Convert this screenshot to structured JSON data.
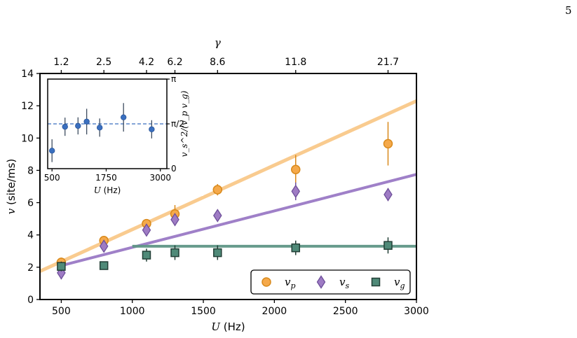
{
  "page_number": "5",
  "chart_data": {
    "type": "scatter",
    "title": "",
    "xlabel": "U (Hz)",
    "ylabel": "v (site/ms)",
    "top_xlabel": "γ",
    "xlim": [
      350,
      3000
    ],
    "ylim": [
      0,
      14
    ],
    "xticks": [
      500,
      1000,
      1500,
      2000,
      2500,
      3000
    ],
    "yticks": [
      0,
      2,
      4,
      6,
      8,
      10,
      12,
      14
    ],
    "top_ticks": [
      {
        "x": 500,
        "label": "1.2"
      },
      {
        "x": 800,
        "label": "2.5"
      },
      {
        "x": 1100,
        "label": "4.2"
      },
      {
        "x": 1300,
        "label": "6.2"
      },
      {
        "x": 1600,
        "label": "8.6"
      },
      {
        "x": 2150,
        "label": "11.8"
      },
      {
        "x": 2800,
        "label": "21.7"
      }
    ],
    "legend_position": "lower-right",
    "series": [
      {
        "name": "v_p",
        "legend_symbol": "v",
        "legend_sub": "p",
        "marker": "circle",
        "color": "#f5a94a",
        "edge": "#d98a1c",
        "fit_color": "#f9c98a",
        "x": [
          500,
          800,
          1100,
          1300,
          1600,
          2150,
          2800
        ],
        "y": [
          2.3,
          3.65,
          4.7,
          5.3,
          6.8,
          8.05,
          9.65
        ],
        "err": [
          0.3,
          0.2,
          0.2,
          0.55,
          0.35,
          0.9,
          1.35
        ],
        "fit": {
          "x": [
            350,
            3000
          ],
          "y": [
            1.75,
            12.3
          ]
        }
      },
      {
        "name": "v_s",
        "legend_symbol": "v",
        "legend_sub": "s",
        "marker": "diamond",
        "color": "#9e7bc4",
        "edge": "#6e4f9a",
        "fit_color": "#9a7ac6",
        "x": [
          500,
          800,
          1100,
          1300,
          1600,
          2150,
          2800
        ],
        "y": [
          1.65,
          3.3,
          4.3,
          4.95,
          5.2,
          6.7,
          6.5
        ],
        "err": [
          0.4,
          0.3,
          0.25,
          0.3,
          0.35,
          0.55,
          0.4
        ],
        "fit": {
          "x": [
            500,
            3000
          ],
          "y": [
            2.1,
            7.75
          ]
        }
      },
      {
        "name": "v_g",
        "legend_symbol": "v",
        "legend_sub": "g",
        "marker": "square",
        "color": "#4f8a78",
        "edge": "#223f36",
        "fit_color": "#5f9686",
        "x": [
          500,
          800,
          1100,
          1300,
          1600,
          2150,
          2800
        ],
        "y": [
          2.05,
          2.1,
          2.75,
          2.9,
          2.9,
          3.2,
          3.35
        ],
        "err": [
          0.3,
          0.2,
          0.4,
          0.45,
          0.45,
          0.45,
          0.5
        ],
        "fit": {
          "x": [
            1000,
            3000
          ],
          "y": [
            3.3,
            3.3
          ]
        }
      }
    ],
    "inset": {
      "type": "scatter",
      "xlabel": "U (Hz)",
      "ylabel": "v_s^2/(v_p v_g)",
      "xlim": [
        400,
        3150
      ],
      "ylim": [
        0,
        3.14159
      ],
      "xticks": [
        500,
        1750,
        3000
      ],
      "yticks": [
        {
          "value": 0,
          "label": "0"
        },
        {
          "value": 1.5708,
          "label": "π/2"
        },
        {
          "value": 3.14159,
          "label": "π"
        }
      ],
      "reference_line": 1.5708,
      "color": "#3a6fbf",
      "x": [
        500,
        800,
        1100,
        1300,
        1600,
        2150,
        2800
      ],
      "y": [
        0.63,
        1.47,
        1.5,
        1.65,
        1.44,
        1.8,
        1.38
      ],
      "err": [
        0.4,
        0.32,
        0.3,
        0.45,
        0.32,
        0.5,
        0.32
      ]
    }
  }
}
